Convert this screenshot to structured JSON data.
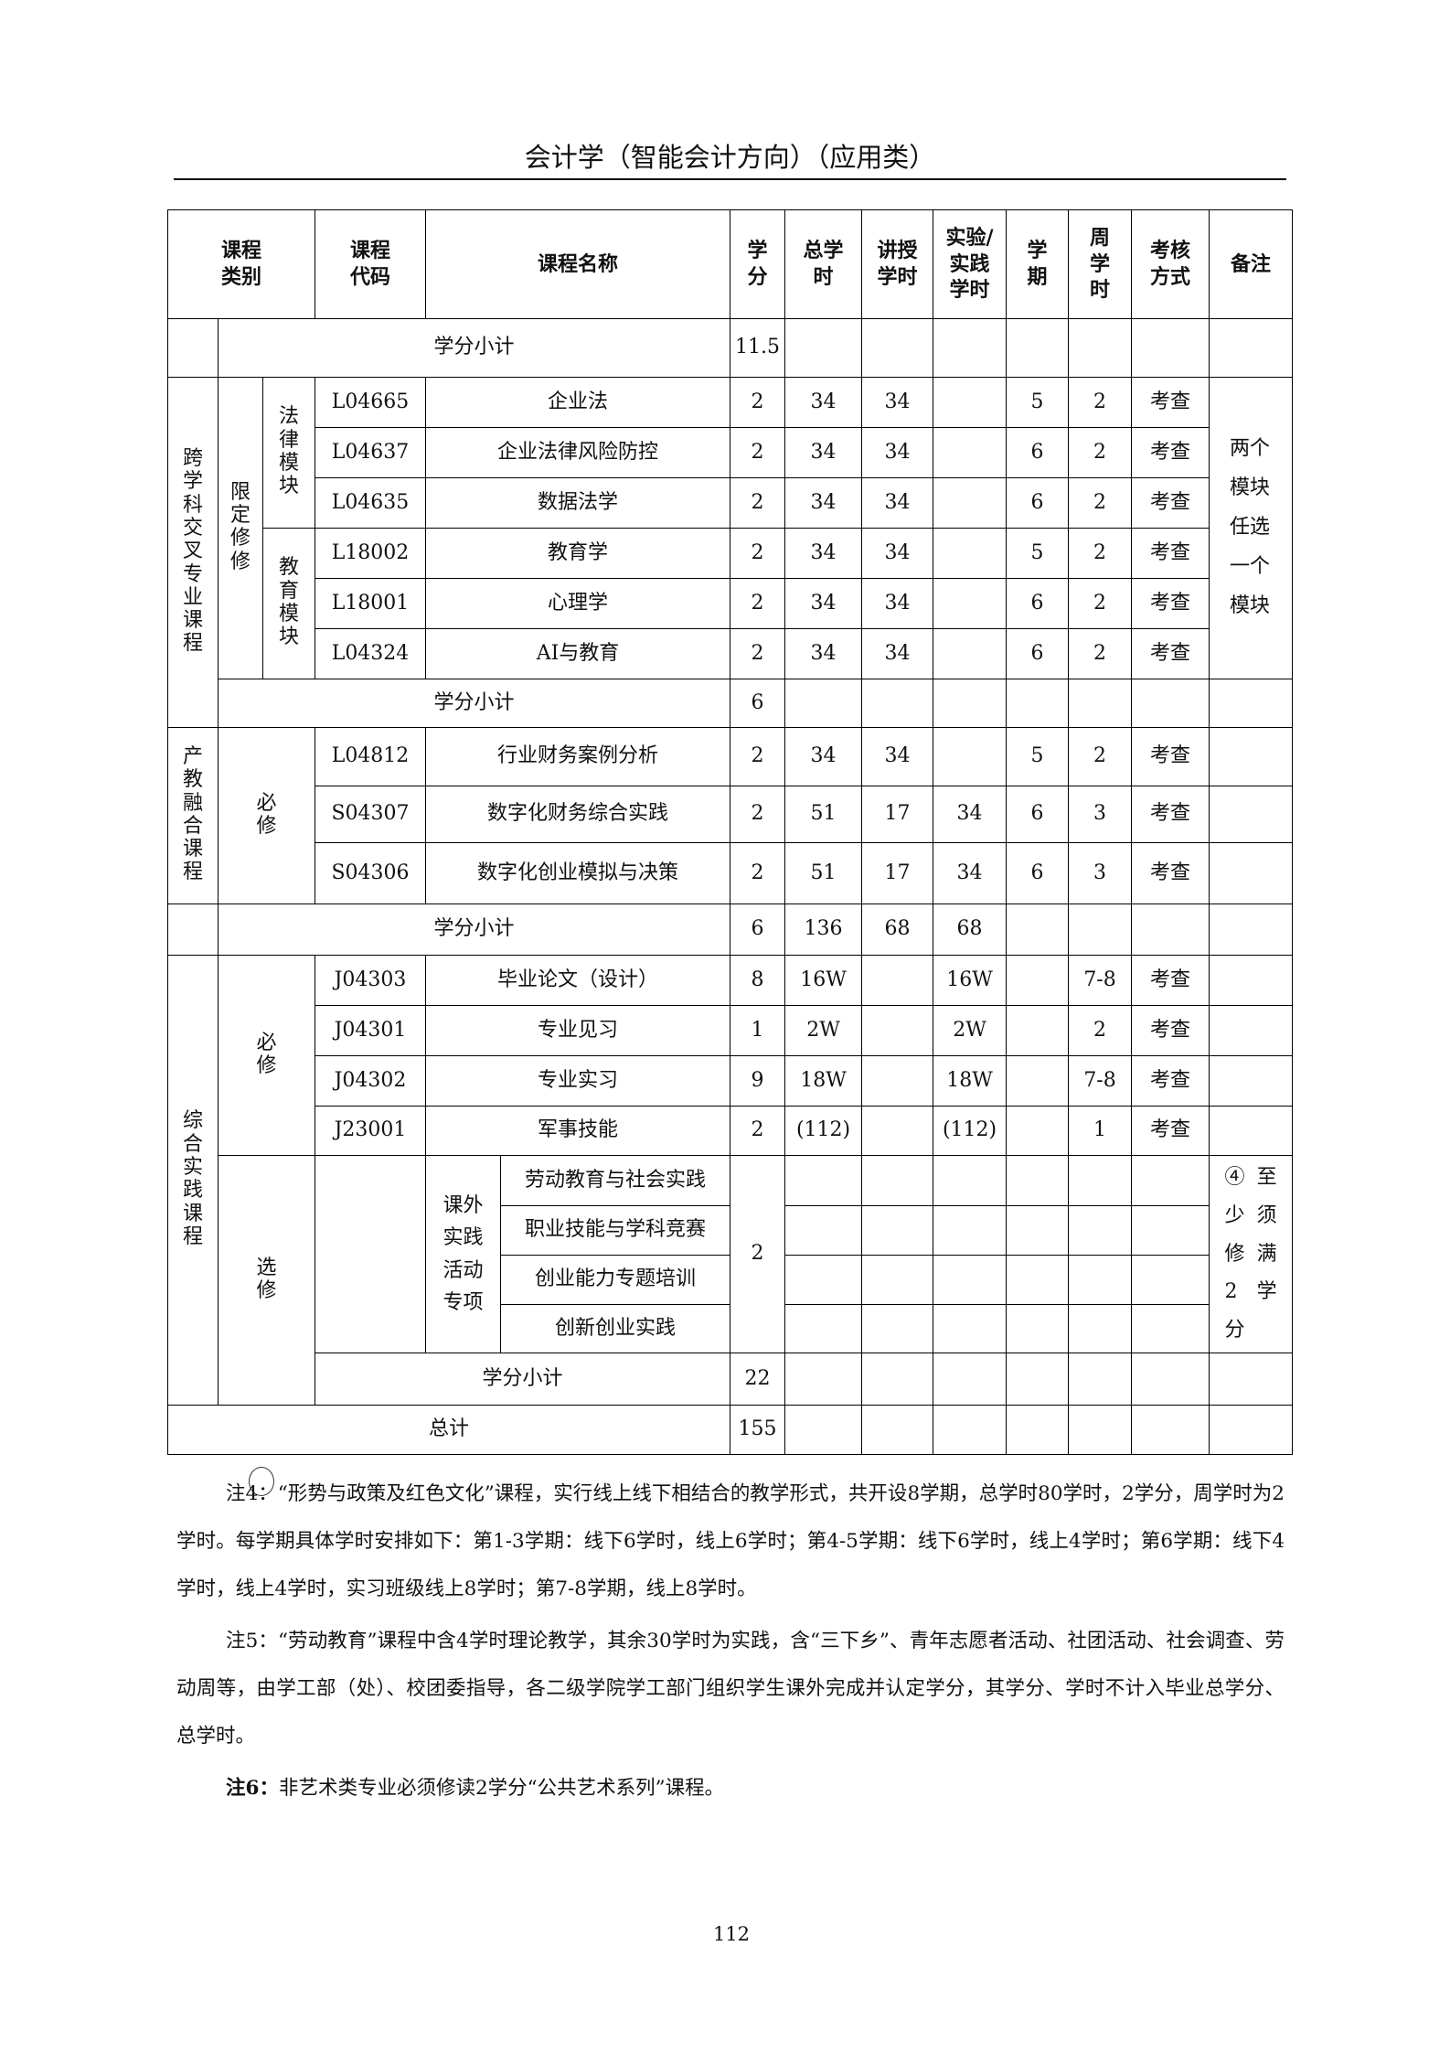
{
  "title": "会计学（智能会计方向）（应用类）",
  "header": {
    "category": "课程\n类别",
    "code": "课程\n代码",
    "name": "课程名称",
    "credit": "学\n分",
    "total_hours": "总学\n时",
    "lecture_hours": "讲授\n学时",
    "lab_hours": "实验/\n实践\n学时",
    "term": "学\n期",
    "weekly_hours": "周\n学\n时",
    "assessment": "考核\n方式",
    "remark": "备注"
  },
  "subtotal_prev": {
    "label": "学分小计",
    "credit": "11.5"
  },
  "cross": {
    "category": "跨学科交叉专业课程",
    "type": "限定修修",
    "modules": [
      "法律模块",
      "教育模块"
    ],
    "remark": "两个模块任选一个模块",
    "courses": [
      {
        "code": "L04665",
        "name": "企业法",
        "credit": "2",
        "total": "34",
        "lecture": "34",
        "lab": "",
        "term": "5",
        "weekly": "2",
        "assessment": "考查"
      },
      {
        "code": "L04637",
        "name": "企业法律风险防控",
        "credit": "2",
        "total": "34",
        "lecture": "34",
        "lab": "",
        "term": "6",
        "weekly": "2",
        "assessment": "考查"
      },
      {
        "code": "L04635",
        "name": "数据法学",
        "credit": "2",
        "total": "34",
        "lecture": "34",
        "lab": "",
        "term": "6",
        "weekly": "2",
        "assessment": "考查"
      },
      {
        "code": "L18002",
        "name": "教育学",
        "credit": "2",
        "total": "34",
        "lecture": "34",
        "lab": "",
        "term": "5",
        "weekly": "2",
        "assessment": "考查"
      },
      {
        "code": "L18001",
        "name": "心理学",
        "credit": "2",
        "total": "34",
        "lecture": "34",
        "lab": "",
        "term": "6",
        "weekly": "2",
        "assessment": "考查"
      },
      {
        "code": "L04324",
        "name": "AI与教育",
        "credit": "2",
        "total": "34",
        "lecture": "34",
        "lab": "",
        "term": "6",
        "weekly": "2",
        "assessment": "考查"
      }
    ],
    "subtotal": {
      "label": "学分小计",
      "credit": "6"
    }
  },
  "industry": {
    "category": "产教融合课程",
    "type": "必修",
    "courses": [
      {
        "code": "L04812",
        "name": "行业财务案例分析",
        "credit": "2",
        "total": "34",
        "lecture": "34",
        "lab": "",
        "term": "5",
        "weekly": "2",
        "assessment": "考查"
      },
      {
        "code": "S04307",
        "name": "数字化财务综合实践",
        "credit": "2",
        "total": "51",
        "lecture": "17",
        "lab": "34",
        "term": "6",
        "weekly": "3",
        "assessment": "考查"
      },
      {
        "code": "S04306",
        "name": "数字化创业模拟与决策",
        "credit": "2",
        "total": "51",
        "lecture": "17",
        "lab": "34",
        "term": "6",
        "weekly": "3",
        "assessment": "考查"
      }
    ],
    "subtotal": {
      "label": "学分小计",
      "credit": "6",
      "total": "136",
      "lecture": "68",
      "lab": "68"
    }
  },
  "practice": {
    "category": "综合实践课程",
    "required_type": "必修",
    "courses": [
      {
        "code": "J04303",
        "name": "毕业论文（设计）",
        "credit": "8",
        "total": "16W",
        "lecture": "",
        "lab": "16W",
        "term": "",
        "weekly": "7-8",
        "assessment": "考查"
      },
      {
        "code": "J04301",
        "name": "专业见习",
        "credit": "1",
        "total": "2W",
        "lecture": "",
        "lab": "2W",
        "term": "",
        "weekly": "2",
        "assessment": "考查"
      },
      {
        "code": "J04302",
        "name": "专业实习",
        "credit": "9",
        "total": "18W",
        "lecture": "",
        "lab": "18W",
        "term": "",
        "weekly": "7-8",
        "assessment": "考查"
      },
      {
        "code": "J23001",
        "name": "军事技能",
        "credit": "2",
        "total": "(112)",
        "lecture": "",
        "lab": "(112)",
        "term": "",
        "weekly": "1",
        "assessment": "考查"
      }
    ],
    "elective_type": "选修",
    "elective_group": "课外实践活动专项",
    "elective_items": [
      "劳动教育与社会实践",
      "职业技能与学科竞赛",
      "创业能力专题培训",
      "创新创业实践"
    ],
    "elective_credit": "2",
    "elective_remark": "④ 至少须修满2学分",
    "subtotal": {
      "label": "学分小计",
      "credit": "22"
    }
  },
  "total": {
    "label": "总计",
    "credit": "155"
  },
  "notes": [
    {
      "prefix": "注4：",
      "text": "“形势与政策及红色文化”课程，实行线上线下相结合的教学形式，共开设8学期，总学时80学时，2学分，周学时为2学时。每学期具体学时安排如下：第1-3学期：线下6学时，线上6学时；第4-5学期：线下6学时，线上4学时；第6学期：线下4学时，线上4学时，实习班级线上8学时；第7-8学期，线上8学时。"
    },
    {
      "prefix": "注5：",
      "text": "“劳动教育”课程中含4学时理论教学，其余30学时为实践，含“三下乡”、青年志愿者活动、社团活动、社会调查、劳动周等，由学工部（处）、校团委指导，各二级学院学工部门组织学生课外完成并认定学分，其学分、学时不计入毕业总学分、总学时。"
    },
    {
      "prefix": "注6：",
      "text": "非艺术类专业必须修读2学分“公共艺术系列”课程。"
    }
  ],
  "page_number": "112"
}
